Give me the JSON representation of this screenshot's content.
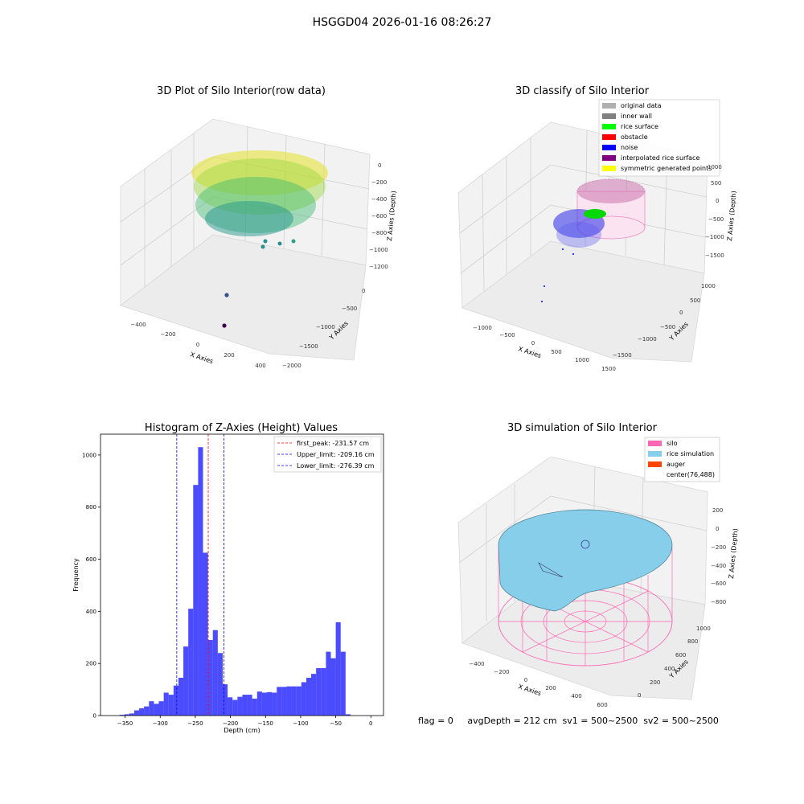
{
  "suptitle": "HSGGD04 2026-01-16 08:26:27",
  "footer": "flag = 0     avgDepth = 212 cm  sv1 = 500~2500  sv2 = 500~2500",
  "chart_data": [
    {
      "type": "scatter",
      "projection": "3d",
      "title": "3D Plot of Silo Interior(row data)",
      "xlabel": "X Axies",
      "ylabel": "Y Axies",
      "zlabel": "Z Axies (Depth)",
      "xticks": [
        "−400",
        "−200",
        "0",
        "200",
        "400"
      ],
      "yticks": [
        "0",
        "−500",
        "−1000",
        "−1500",
        "−2000"
      ],
      "zticks": [
        "0",
        "−200",
        "−400",
        "−600",
        "−800",
        "−1000",
        "−1200"
      ],
      "xlim": [
        -500,
        500
      ],
      "ylim": [
        -2000,
        200
      ],
      "zlim": [
        -1300,
        100
      ],
      "colormap": "viridis",
      "description_points": "dense ring of points near Z≈-200 to -700 with two outliers near Z≈-1600",
      "grid": true
    },
    {
      "type": "scatter",
      "projection": "3d",
      "title": "3D classify of Silo Interior",
      "xlabel": "X Axies",
      "ylabel": "Y Axies",
      "zlabel": "Z Axies (Depth)",
      "xticks": [
        "−1000",
        "−500",
        "0",
        "500",
        "1000",
        "1500"
      ],
      "yticks": [
        "−1500",
        "−1000",
        "−500",
        "0",
        "500",
        "1000"
      ],
      "zticks": [
        "1000",
        "500",
        "0",
        "−500",
        "−1000",
        "−1500"
      ],
      "legend_position": "top-right",
      "legend": [
        {
          "label": "original data",
          "color": "#b0b0b0"
        },
        {
          "label": "inner wall",
          "color": "#808080"
        },
        {
          "label": "rice surface",
          "color": "#00ff00"
        },
        {
          "label": "obstacle",
          "color": "#ff0000"
        },
        {
          "label": "noise",
          "color": "#0000ff"
        },
        {
          "label": "interpolated rice surface",
          "color": "#800080"
        },
        {
          "label": "symmetric generated points",
          "color": "#ffff00"
        }
      ],
      "grid": true
    },
    {
      "type": "bar",
      "title": "Histogram of Z-Axies (Height) Values",
      "xlabel": "Depth (cm)",
      "ylabel": "Frequency",
      "xlim": [
        -385,
        18
      ],
      "ylim": [
        0,
        1080
      ],
      "xticks": [
        -350,
        -300,
        -250,
        -200,
        -150,
        -100,
        -50,
        0
      ],
      "xtick_labels": [
        "−350",
        "−300",
        "−250",
        "−200",
        "−150",
        "−100",
        "−50",
        "0"
      ],
      "yticks": [
        0,
        200,
        400,
        600,
        800,
        1000
      ],
      "bar_color": "#0000ff",
      "bins_start": -358,
      "bin_width": 7,
      "values": [
        3,
        5,
        8,
        20,
        28,
        35,
        55,
        45,
        55,
        88,
        80,
        115,
        145,
        265,
        410,
        885,
        1030,
        625,
        290,
        328,
        240,
        120,
        70,
        60,
        72,
        80,
        80,
        65,
        92,
        88,
        90,
        88,
        110,
        110,
        112,
        112,
        112,
        128,
        145,
        160,
        182,
        182,
        245,
        220,
        358,
        245,
        5
      ],
      "vlines": [
        {
          "label": "first_peak: -231.57 cm",
          "x": -231.57,
          "color": "#ff0000"
        },
        {
          "label": "Upper_limit: -209.16 cm",
          "x": -209.16,
          "color": "#0000ff"
        },
        {
          "label": "Lower_limit: -276.39 cm",
          "x": -276.39,
          "color": "#0000ff"
        }
      ],
      "legend_position": "top-right"
    },
    {
      "type": "surface",
      "projection": "3d",
      "title": "3D simulation of Silo Interior",
      "xlabel": "X Axies",
      "ylabel": "Y Axies",
      "zlabel": "Z Axies (Depth)",
      "xticks": [
        "−400",
        "−200",
        "0",
        "200",
        "400",
        "600"
      ],
      "yticks": [
        "0",
        "200",
        "400",
        "600",
        "800",
        "1000"
      ],
      "zticks": [
        "200",
        "0",
        "−200",
        "−400",
        "−600",
        "−800"
      ],
      "legend_position": "top-right",
      "legend": [
        {
          "label": "silo",
          "color": "#ff69b4"
        },
        {
          "label": "rice simulation",
          "color": "#87ceeb"
        },
        {
          "label": "auger",
          "color": "#ff4500"
        },
        {
          "label": "center(76,488)",
          "color": ""
        }
      ],
      "grid": true
    }
  ]
}
